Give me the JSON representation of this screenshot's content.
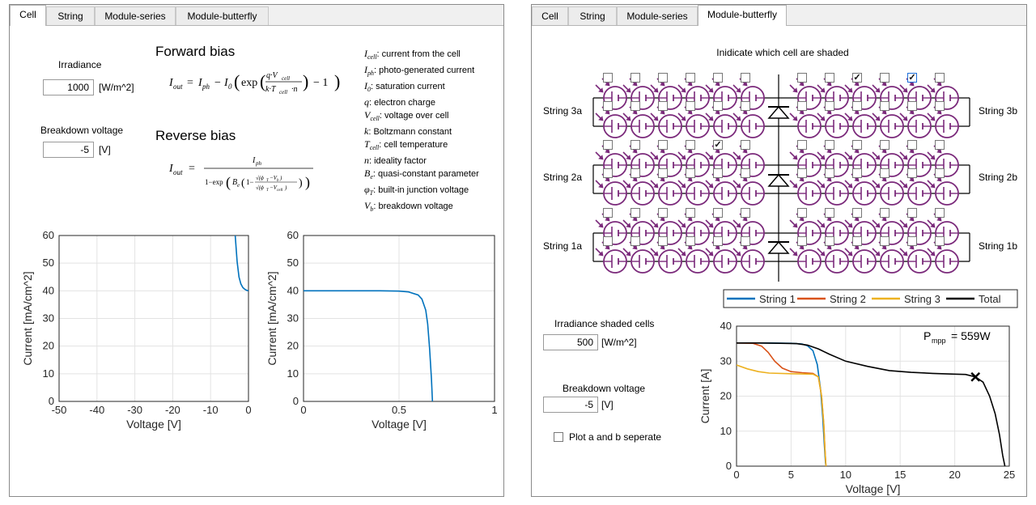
{
  "left_panel": {
    "tabs": [
      "Cell",
      "String",
      "Module-series",
      "Module-butterfly"
    ],
    "active_tab": 0,
    "irradiance": {
      "label": "Irradiance",
      "value": "1000",
      "unit": "[W/m^2]"
    },
    "breakdown": {
      "label": "Breakdown voltage",
      "value": "-5",
      "unit": "[V]"
    },
    "forward_title": "Forward bias",
    "reverse_title": "Reverse bias",
    "legend_lines": [
      {
        "sym": "I",
        "sub": "cell",
        "text": ": current from the cell"
      },
      {
        "sym": "I",
        "sub": "ph",
        "text": ": photo-generated current"
      },
      {
        "sym": "I",
        "sub": "0",
        "text": ": saturation current"
      },
      {
        "sym": "q",
        "sub": "",
        "text": ": electron charge"
      },
      {
        "sym": "V",
        "sub": "cell",
        "text": ": voltage over cell"
      },
      {
        "sym": "k",
        "sub": "",
        "text": ": Boltzmann constant"
      },
      {
        "sym": "T",
        "sub": "cell",
        "text": ": cell temperature"
      },
      {
        "sym": "n",
        "sub": "",
        "text": ": ideality factor"
      },
      {
        "sym": "B",
        "sub": "e",
        "text": ": quasi-constant parameter"
      },
      {
        "sym": "φ",
        "sub": "T",
        "text": ": built-in junction voltage"
      },
      {
        "sym": "V",
        "sub": "b",
        "text": ": breakdown voltage"
      }
    ]
  },
  "right_panel": {
    "tabs": [
      "Cell",
      "String",
      "Module-series",
      "Module-butterfly"
    ],
    "active_tab": 3,
    "shade_prompt": "Inidicate which cell are shaded",
    "string_labels_left": [
      "String 3a",
      "String 2a",
      "String 1a"
    ],
    "string_labels_right": [
      "String 3b",
      "String 2b",
      "String 1b"
    ],
    "checked_cells": [
      [
        0,
        8
      ],
      [
        0,
        10
      ],
      [
        2,
        4
      ]
    ],
    "irradiance_shaded": {
      "label": "Irradiance shaded cells",
      "value": "500",
      "unit": "[W/m^2]"
    },
    "breakdown": {
      "label": "Breakdown voltage",
      "value": "-5",
      "unit": "[V]"
    },
    "plot_separate": {
      "label": "Plot a and b seperate",
      "checked": false
    }
  },
  "colors": {
    "cell": "#7b2a7b",
    "blue": "#0072bd",
    "red": "#d95319",
    "yellow": "#edb120",
    "black": "#000000"
  },
  "chart_data": [
    {
      "type": "line",
      "xlabel": "Voltage [V]",
      "ylabel": "Current  [mA/cm^2]",
      "xlim": [
        -50,
        0
      ],
      "ylim": [
        0,
        60
      ],
      "xticks": [
        "-50",
        "-40",
        "-30",
        "-20",
        "-10",
        "0"
      ],
      "yticks": [
        "0",
        "10",
        "20",
        "30",
        "40",
        "50",
        "60"
      ],
      "series": [
        {
          "x": [
            -3.5,
            -3.0,
            -2.5,
            -2.0,
            -1.5,
            -1.0,
            -0.5,
            0
          ],
          "y": [
            60,
            50.5,
            45,
            42.5,
            41.2,
            40.6,
            40.2,
            40
          ]
        }
      ]
    },
    {
      "type": "line",
      "xlabel": "Voltage [V]",
      "ylabel": "Current  [mA/cm^2]",
      "xlim": [
        0,
        1
      ],
      "ylim": [
        0,
        60
      ],
      "xticks": [
        "0",
        "0.5",
        "1"
      ],
      "yticks": [
        "0",
        "10",
        "20",
        "30",
        "40",
        "50",
        "60"
      ],
      "series": [
        {
          "x": [
            0,
            0.4,
            0.5,
            0.55,
            0.6,
            0.62,
            0.64,
            0.65,
            0.66,
            0.67,
            0.675
          ],
          "y": [
            40,
            40,
            39.9,
            39.6,
            38.5,
            37,
            33,
            28,
            19,
            8,
            0
          ]
        }
      ]
    },
    {
      "type": "line",
      "xlabel": "Voltage [V]",
      "ylabel": "Current [A]",
      "xlim": [
        0,
        25
      ],
      "ylim": [
        0,
        40
      ],
      "xticks": [
        "0",
        "5",
        "10",
        "15",
        "20",
        "25"
      ],
      "yticks": [
        "0",
        "10",
        "20",
        "30",
        "40"
      ],
      "legend": [
        "String 1",
        "String 2",
        "String 3",
        "Total"
      ],
      "annotation": {
        "text": "P",
        "sub": "mpp",
        "value": "=  559W"
      },
      "mpp": {
        "x": 21.9,
        "y": 25.5
      },
      "series": [
        {
          "name": "String 1",
          "x": [
            0,
            3,
            5,
            6,
            6.5,
            7,
            7.4,
            7.7,
            7.9,
            8.05,
            8.15,
            8.2
          ],
          "y": [
            35.2,
            35.2,
            35.1,
            34.9,
            34.4,
            33,
            29,
            22,
            14,
            6,
            1,
            0
          ]
        },
        {
          "name": "String 2",
          "x": [
            0,
            1.5,
            2.3,
            2.9,
            3.5,
            4.2,
            5,
            6,
            7,
            7.5,
            7.8,
            8.0,
            8.1,
            8.2
          ],
          "y": [
            35.2,
            35.1,
            34.3,
            32.5,
            30,
            28,
            27,
            26.7,
            26.5,
            25.5,
            20,
            12,
            5,
            0
          ]
        },
        {
          "name": "String 3",
          "x": [
            0,
            1,
            2,
            3,
            5,
            7,
            7.5,
            7.8,
            8.0,
            8.1,
            8.2
          ],
          "y": [
            28.9,
            27.8,
            27,
            26.6,
            26.4,
            26.3,
            25.5,
            20,
            12,
            5,
            0
          ]
        },
        {
          "name": "Total",
          "x": [
            0,
            2,
            4,
            5.5,
            6.5,
            7.5,
            8.5,
            10,
            12,
            14,
            16,
            18,
            20,
            21,
            21.9,
            22.6,
            23.2,
            23.7,
            24.1,
            24.4,
            24.6
          ],
          "y": [
            35.2,
            35.2,
            35.1,
            35.0,
            34.6,
            33.5,
            32,
            30,
            28.5,
            27.3,
            26.8,
            26.5,
            26.3,
            26.2,
            25.5,
            24,
            20,
            15,
            9,
            3,
            0
          ]
        }
      ]
    }
  ]
}
